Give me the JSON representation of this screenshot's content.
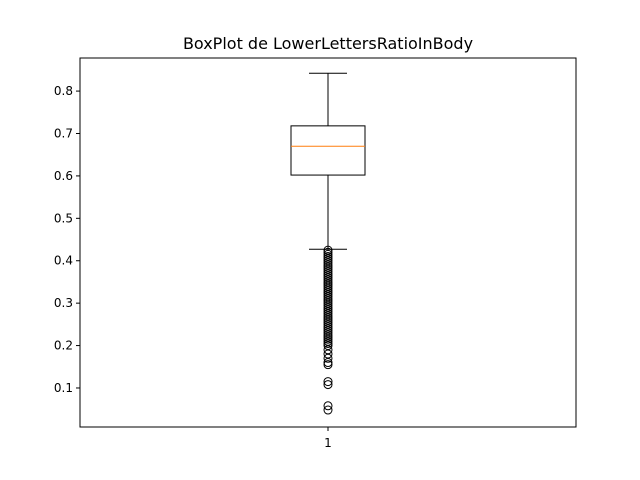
{
  "chart_data": {
    "type": "box",
    "title": "BoxPlot de LowerLettersRatioInBody",
    "xlabel": "",
    "ylabel": "",
    "categories": [
      "1"
    ],
    "ylim": [
      0.008,
      0.878
    ],
    "yticks": [
      0.1,
      0.2,
      0.3,
      0.4,
      0.5,
      0.6,
      0.7,
      0.8
    ],
    "ytick_labels": [
      "0.1",
      "0.2",
      "0.3",
      "0.4",
      "0.5",
      "0.6",
      "0.7",
      "0.8"
    ],
    "box": {
      "whisker_low": 0.427,
      "q1": 0.602,
      "median": 0.67,
      "q3": 0.718,
      "whisker_high": 0.842
    },
    "outliers": [
      0.425,
      0.42,
      0.415,
      0.41,
      0.405,
      0.4,
      0.395,
      0.39,
      0.385,
      0.38,
      0.375,
      0.37,
      0.365,
      0.36,
      0.355,
      0.35,
      0.345,
      0.34,
      0.335,
      0.33,
      0.325,
      0.32,
      0.315,
      0.31,
      0.305,
      0.3,
      0.295,
      0.29,
      0.285,
      0.28,
      0.275,
      0.27,
      0.265,
      0.26,
      0.255,
      0.25,
      0.245,
      0.24,
      0.235,
      0.23,
      0.225,
      0.22,
      0.215,
      0.21,
      0.205,
      0.2,
      0.19,
      0.18,
      0.17,
      0.16,
      0.155,
      0.115,
      0.108,
      0.058,
      0.048
    ],
    "colors": {
      "box": "#000000",
      "median": "#ff7f0e",
      "outlier_edge": "#000000"
    }
  }
}
